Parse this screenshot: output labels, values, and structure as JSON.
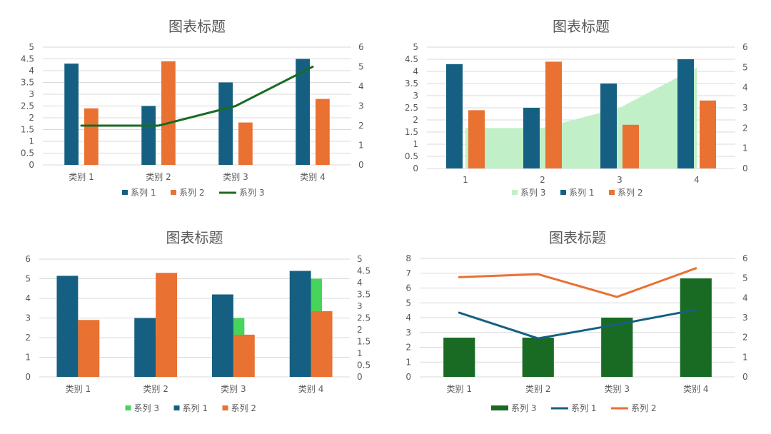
{
  "chart_data": [
    {
      "type": "bar",
      "title": "图表标题",
      "categories": [
        "类别 1",
        "类别 2",
        "类别 3",
        "类别 4"
      ],
      "ylim": [
        0,
        5
      ],
      "y2lim": [
        0,
        6
      ],
      "yticks": [
        "0",
        "0.5",
        "1",
        "1.5",
        "2",
        "2.5",
        "3",
        "3.5",
        "4",
        "4.5",
        "5"
      ],
      "y2ticks": [
        "0",
        "1",
        "2",
        "3",
        "4",
        "5",
        "6"
      ],
      "series": [
        {
          "name": "系列 1",
          "kind": "bar",
          "axis": "primary",
          "color": "#156082",
          "values": [
            4.3,
            2.5,
            3.5,
            4.5
          ]
        },
        {
          "name": "系列 2",
          "kind": "bar",
          "axis": "primary",
          "color": "#e97132",
          "values": [
            2.4,
            4.4,
            1.8,
            2.8
          ]
        },
        {
          "name": "系列 3",
          "kind": "line",
          "axis": "secondary",
          "color": "#196b24",
          "values": [
            2,
            2,
            3,
            5
          ]
        }
      ],
      "legend": [
        "系列 1",
        "系列 2",
        "系列 3"
      ],
      "legend_position": "bottom",
      "grid": true
    },
    {
      "type": "bar",
      "title": "图表标题",
      "categories": [
        "1",
        "2",
        "3",
        "4"
      ],
      "ylim": [
        0,
        5
      ],
      "y2lim": [
        0,
        6
      ],
      "yticks": [
        "0",
        "0.5",
        "1",
        "1.5",
        "2",
        "2.5",
        "3",
        "3.5",
        "4",
        "4.5",
        "5"
      ],
      "y2ticks": [
        "0",
        "1",
        "2",
        "3",
        "4",
        "5",
        "6"
      ],
      "series": [
        {
          "name": "系列 3",
          "kind": "area",
          "axis": "secondary",
          "color": "#c1f0c8",
          "values": [
            2,
            2,
            3,
            5
          ]
        },
        {
          "name": "系列 1",
          "kind": "bar",
          "axis": "primary",
          "color": "#156082",
          "values": [
            4.3,
            2.5,
            3.5,
            4.5
          ]
        },
        {
          "name": "系列 2",
          "kind": "bar",
          "axis": "primary",
          "color": "#e97132",
          "values": [
            2.4,
            4.4,
            1.8,
            2.8
          ]
        }
      ],
      "legend": [
        "系列 3",
        "系列 1",
        "系列 2"
      ],
      "legend_position": "bottom",
      "grid": true
    },
    {
      "type": "bar",
      "title": "图表标题",
      "categories": [
        "类别 1",
        "类别 2",
        "类别 3",
        "类别 4"
      ],
      "ylim": [
        0,
        6
      ],
      "y2lim": [
        0,
        5
      ],
      "yticks": [
        "0",
        "1",
        "2",
        "3",
        "4",
        "5",
        "6"
      ],
      "y2ticks": [
        "0",
        "0.5",
        "1",
        "1.5",
        "2",
        "2.5",
        "3",
        "3.5",
        "4",
        "4.5",
        "5"
      ],
      "series": [
        {
          "name": "系列 3",
          "kind": "bar",
          "axis": "secondary",
          "color": "#47d45a",
          "values": [
            1.67,
            1.67,
            2.5,
            4.17
          ]
        },
        {
          "name": "系列 1",
          "kind": "bar",
          "axis": "primary",
          "color": "#156082",
          "values": [
            5.15,
            3,
            4.2,
            5.4
          ]
        },
        {
          "name": "系列 2",
          "kind": "bar",
          "axis": "primary",
          "color": "#e97132",
          "values": [
            2.9,
            5.3,
            2.15,
            3.35
          ]
        }
      ],
      "legend": [
        "系列 3",
        "系列 1",
        "系列 2"
      ],
      "legend_position": "bottom",
      "grid": true
    },
    {
      "type": "bar",
      "title": "图表标题",
      "categories": [
        "类别 1",
        "类别 2",
        "类别 3",
        "类别 4"
      ],
      "ylim": [
        0,
        8
      ],
      "y2lim": [
        0,
        6
      ],
      "yticks": [
        "0",
        "1",
        "2",
        "3",
        "4",
        "5",
        "6",
        "7",
        "8"
      ],
      "y2ticks": [
        "0",
        "1",
        "2",
        "3",
        "4",
        "5",
        "6"
      ],
      "series": [
        {
          "name": "系列 3",
          "kind": "bar",
          "axis": "primary",
          "color": "#196b24",
          "values": [
            2.65,
            2.65,
            4,
            6.65
          ]
        },
        {
          "name": "系列 1",
          "kind": "line",
          "axis": "secondary",
          "color": "#156082",
          "values": [
            3.25,
            1.95,
            2.65,
            3.4
          ]
        },
        {
          "name": "系列 2",
          "kind": "line",
          "axis": "secondary",
          "color": "#e97132",
          "values": [
            5.05,
            5.2,
            4.05,
            5.5
          ]
        }
      ],
      "legend": [
        "系列 3",
        "系列 1",
        "系列 2"
      ],
      "legend_position": "bottom",
      "grid": true
    }
  ]
}
